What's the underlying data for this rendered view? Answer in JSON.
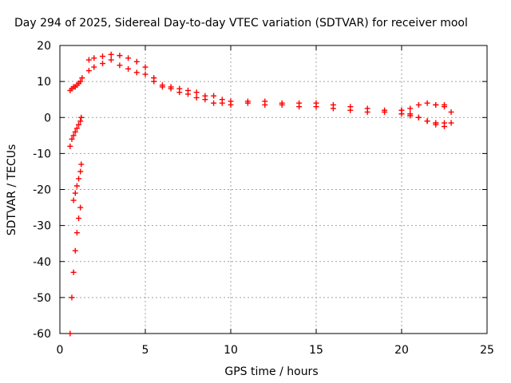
{
  "chart_data": {
    "type": "scatter",
    "title": "Day 294 of 2025, Sidereal Day-to-day VTEC variation (SDTVAR) for receiver mool",
    "xlabel": "GPS time / hours",
    "ylabel": "SDTVAR / TECUs",
    "xlim": [
      0,
      25
    ],
    "ylim": [
      -60,
      20
    ],
    "xticks": [
      0,
      5,
      10,
      15,
      20,
      25
    ],
    "yticks": [
      -60,
      -50,
      -40,
      -30,
      -20,
      -10,
      0,
      10,
      20
    ],
    "grid": true,
    "marker": "+",
    "color": "#ff0000",
    "series": [
      {
        "name": "SDTVAR",
        "segments": [
          {
            "x": [
              0.6,
              0.7,
              0.8,
              0.9,
              1.0,
              1.1,
              1.2
            ],
            "y": [
              -60,
              -50,
              -43,
              -37,
              -32,
              -28,
              -25
            ]
          },
          {
            "x": [
              0.8,
              0.9,
              1.0,
              1.1,
              1.2,
              1.25
            ],
            "y": [
              -23,
              -21,
              -19,
              -17,
              -15,
              -13
            ]
          },
          {
            "x": [
              0.6,
              0.7,
              0.8,
              0.9,
              1.0,
              1.1,
              1.2,
              1.25
            ],
            "y": [
              -8,
              -6,
              -5,
              -4,
              -3,
              -2,
              -1,
              0
            ]
          },
          {
            "x": [
              0.6,
              0.7,
              0.8,
              0.9,
              1.0,
              1.1,
              1.2,
              1.3
            ],
            "y": [
              7.5,
              8,
              8.5,
              8.5,
              9,
              9.5,
              10,
              11
            ]
          },
          {
            "x": [
              1.7,
              2.0,
              2.5,
              3.0,
              3.5,
              4.0,
              4.5,
              5.0,
              5.5,
              6.0,
              6.5,
              7.0,
              7.5,
              8.0,
              8.5,
              9.0,
              9.5,
              10.0,
              11.0,
              12.0,
              13.0,
              14.0,
              15.0,
              16.0,
              17.0,
              18.0,
              19.0,
              20.0,
              20.5,
              21.0,
              21.5,
              22.0,
              22.5
            ],
            "y": [
              16,
              16.5,
              17,
              17.5,
              17.2,
              16.5,
              15.5,
              14,
              11,
              9,
              8.5,
              8,
              7.5,
              7,
              6,
              6,
              5,
              4.5,
              4.5,
              4.5,
              4,
              4,
              4,
              3.5,
              3,
              2.5,
              2,
              2,
              2.5,
              3.5,
              4,
              3.5,
              3.5
            ]
          },
          {
            "x": [
              1.7,
              2.0,
              2.5,
              3.0,
              3.5,
              4.0,
              4.5,
              5.0,
              5.5,
              6.0,
              6.5,
              7.0,
              7.5,
              8.0,
              8.5,
              9.0,
              9.5,
              10.0,
              11.0,
              12.0,
              13.0,
              14.0,
              15.0,
              16.0,
              17.0,
              18.0,
              19.0,
              20.0,
              20.5,
              21.0,
              21.5,
              22.0
            ],
            "y": [
              13,
              14,
              15,
              16,
              14.5,
              13.5,
              12.5,
              12,
              10,
              8.5,
              8,
              7,
              6.5,
              5.5,
              5,
              4,
              4,
              3.5,
              4,
              3.5,
              3.5,
              3,
              3,
              2.5,
              2,
              1.5,
              1.5,
              1,
              0.5,
              0,
              -1,
              -1.5
            ]
          },
          {
            "x": [
              20.0,
              20.5,
              21.0,
              21.5,
              22.0,
              22.5
            ],
            "y": [
              2,
              1,
              0,
              -1,
              -2,
              -2.5
            ]
          },
          {
            "x": [
              22.0,
              22.5,
              22.9
            ],
            "y": [
              -1.5,
              -1.5,
              -1.5
            ]
          },
          {
            "x": [
              22.0,
              22.5,
              22.9
            ],
            "y": [
              3.5,
              3,
              1.5
            ]
          }
        ]
      }
    ]
  }
}
